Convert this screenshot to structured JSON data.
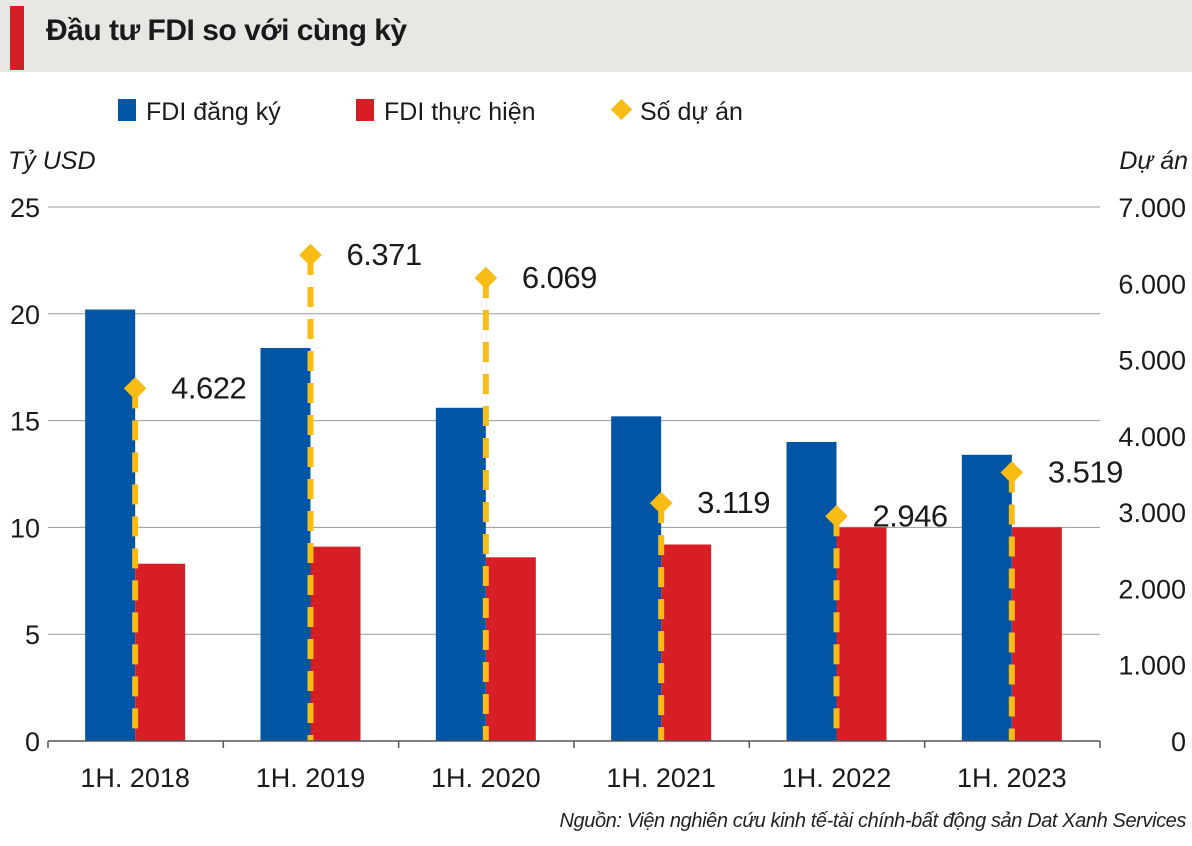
{
  "header": {
    "title": "Đầu tư FDI so với cùng kỳ"
  },
  "legend": {
    "registered": "FDI đăng ký",
    "disbursed": "FDI thực hiện",
    "projects": "Số dự án"
  },
  "source": "Nguồn: Viện nghiên cứu kinh tế-tài chính-bất động sản Dat Xanh Services",
  "colors": {
    "registered": "#0055a5",
    "disbursed": "#d71e24",
    "projects": "#f9bc15",
    "header_accent": "#d51f26"
  },
  "chart_data": {
    "type": "bar",
    "categories": [
      "1H. 2018",
      "1H. 2019",
      "1H. 2020",
      "1H. 2021",
      "1H. 2022",
      "1H. 2023"
    ],
    "series": [
      {
        "name": "FDI đăng ký",
        "type": "bar",
        "axis": "left",
        "values": [
          20.2,
          18.4,
          15.6,
          15.2,
          14.0,
          13.4
        ]
      },
      {
        "name": "FDI thực hiện",
        "type": "bar",
        "axis": "left",
        "values": [
          8.3,
          9.1,
          8.6,
          9.2,
          10.0,
          10.0
        ]
      },
      {
        "name": "Số dự án",
        "type": "point",
        "axis": "right",
        "values": [
          4622,
          6371,
          6069,
          3119,
          2946,
          3519
        ],
        "labels": [
          "4.622",
          "6.371",
          "6.069",
          "3.119",
          "2.946",
          "3.519"
        ]
      }
    ],
    "ylabel": "Tỷ USD",
    "y2label": "Dự án",
    "ylim": [
      0,
      25
    ],
    "y2lim": [
      0,
      7000
    ],
    "yticks": [
      "0",
      "5",
      "10",
      "15",
      "20",
      "25"
    ],
    "y2ticks": [
      "0",
      "1.000",
      "2.000",
      "3.000",
      "4.000",
      "5.000",
      "6.000",
      "7.000"
    ],
    "grid": true,
    "legend_position": "top-left"
  }
}
